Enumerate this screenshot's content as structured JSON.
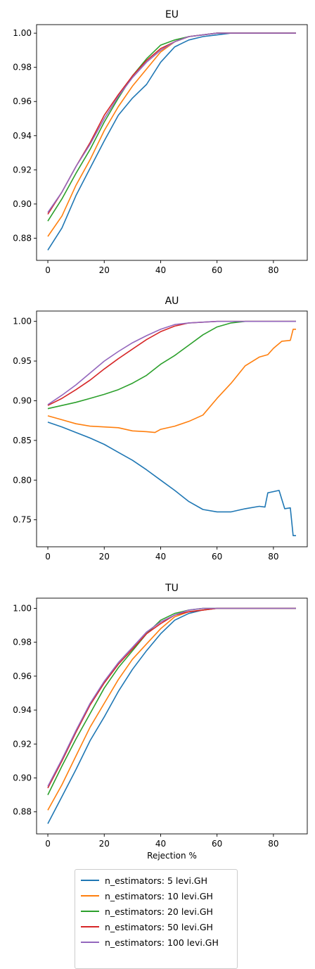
{
  "chart_data": [
    {
      "type": "line",
      "title": "EU",
      "xlabel": "",
      "ylabel": "",
      "xlim": [
        -4,
        92
      ],
      "ylim": [
        0.867,
        1.005
      ],
      "xticks": [
        0,
        20,
        40,
        60,
        80
      ],
      "yticks": [
        0.88,
        0.9,
        0.92,
        0.94,
        0.96,
        0.98,
        1.0
      ],
      "ytick_labels": [
        "0.88",
        "0.90",
        "0.92",
        "0.94",
        "0.96",
        "0.98",
        "1.00"
      ],
      "grid": false,
      "series": [
        {
          "name": "n_estimators: 5 levi.GH",
          "color": "#1f77b4",
          "x": [
            0,
            5,
            10,
            15,
            20,
            25,
            30,
            35,
            40,
            45,
            50,
            55,
            60,
            65,
            70,
            80,
            88
          ],
          "y": [
            0.873,
            0.886,
            0.905,
            0.921,
            0.937,
            0.952,
            0.962,
            0.97,
            0.983,
            0.992,
            0.996,
            0.998,
            0.999,
            1.0,
            1.0,
            1.0,
            1.0
          ]
        },
        {
          "name": "n_estimators: 10 levi.GH",
          "color": "#ff7f0e",
          "x": [
            0,
            5,
            10,
            15,
            20,
            25,
            30,
            35,
            40,
            45,
            50,
            55,
            60,
            65,
            70,
            80,
            88
          ],
          "y": [
            0.881,
            0.893,
            0.911,
            0.926,
            0.943,
            0.957,
            0.969,
            0.979,
            0.989,
            0.995,
            0.998,
            0.999,
            1.0,
            1.0,
            1.0,
            1.0,
            1.0
          ]
        },
        {
          "name": "n_estimators: 20 levi.GH",
          "color": "#2ca02c",
          "x": [
            0,
            5,
            10,
            15,
            20,
            25,
            30,
            35,
            40,
            45,
            50,
            55,
            60,
            65,
            70,
            80,
            88
          ],
          "y": [
            0.89,
            0.903,
            0.918,
            0.932,
            0.948,
            0.962,
            0.975,
            0.985,
            0.993,
            0.996,
            0.998,
            0.999,
            1.0,
            1.0,
            1.0,
            1.0,
            1.0
          ]
        },
        {
          "name": "n_estimators: 50 levi.GH",
          "color": "#d62728",
          "x": [
            0,
            5,
            10,
            15,
            20,
            25,
            30,
            35,
            40,
            45,
            50,
            55,
            60,
            65,
            70,
            80,
            88
          ],
          "y": [
            0.894,
            0.907,
            0.922,
            0.936,
            0.952,
            0.964,
            0.975,
            0.984,
            0.991,
            0.995,
            0.998,
            0.999,
            1.0,
            1.0,
            1.0,
            1.0,
            1.0
          ]
        },
        {
          "name": "n_estimators: 100 levi.GH",
          "color": "#9467bd",
          "x": [
            0,
            5,
            10,
            15,
            20,
            25,
            30,
            35,
            40,
            45,
            50,
            55,
            60,
            65,
            70,
            80,
            88
          ],
          "y": [
            0.895,
            0.907,
            0.922,
            0.935,
            0.95,
            0.963,
            0.974,
            0.983,
            0.99,
            0.995,
            0.998,
            0.999,
            1.0,
            1.0,
            1.0,
            1.0,
            1.0
          ]
        }
      ]
    },
    {
      "type": "line",
      "title": "AU",
      "xlabel": "",
      "ylabel": "",
      "xlim": [
        -4,
        92
      ],
      "ylim": [
        0.716,
        1.013
      ],
      "xticks": [
        0,
        20,
        40,
        60,
        80
      ],
      "yticks": [
        0.75,
        0.8,
        0.85,
        0.9,
        0.95,
        1.0
      ],
      "ytick_labels": [
        "0.75",
        "0.80",
        "0.85",
        "0.90",
        "0.95",
        "1.00"
      ],
      "grid": false,
      "series": [
        {
          "name": "n_estimators: 5 levi.GH",
          "color": "#1f77b4",
          "x": [
            0,
            5,
            10,
            15,
            20,
            25,
            30,
            35,
            40,
            45,
            50,
            55,
            60,
            65,
            70,
            75,
            77,
            78,
            82,
            84,
            86,
            87,
            88
          ],
          "y": [
            0.873,
            0.867,
            0.86,
            0.853,
            0.845,
            0.835,
            0.825,
            0.813,
            0.8,
            0.787,
            0.773,
            0.763,
            0.76,
            0.76,
            0.764,
            0.767,
            0.766,
            0.784,
            0.787,
            0.764,
            0.765,
            0.73,
            0.73
          ]
        },
        {
          "name": "n_estimators: 10 levi.GH",
          "color": "#ff7f0e",
          "x": [
            0,
            5,
            10,
            15,
            20,
            25,
            30,
            35,
            38,
            40,
            45,
            50,
            55,
            60,
            65,
            70,
            75,
            78,
            80,
            83,
            86,
            87,
            88
          ],
          "y": [
            0.881,
            0.876,
            0.871,
            0.868,
            0.867,
            0.866,
            0.862,
            0.861,
            0.86,
            0.864,
            0.868,
            0.874,
            0.882,
            0.903,
            0.922,
            0.944,
            0.955,
            0.958,
            0.966,
            0.975,
            0.976,
            0.99,
            0.99
          ]
        },
        {
          "name": "n_estimators: 20 levi.GH",
          "color": "#2ca02c",
          "x": [
            0,
            5,
            10,
            15,
            20,
            25,
            30,
            35,
            40,
            45,
            50,
            55,
            60,
            65,
            70,
            75,
            80,
            88
          ],
          "y": [
            0.89,
            0.894,
            0.898,
            0.903,
            0.908,
            0.914,
            0.922,
            0.932,
            0.946,
            0.957,
            0.97,
            0.983,
            0.993,
            0.998,
            1.0,
            1.0,
            1.0,
            1.0
          ]
        },
        {
          "name": "n_estimators: 50 levi.GH",
          "color": "#d62728",
          "x": [
            0,
            5,
            10,
            15,
            20,
            25,
            30,
            35,
            40,
            45,
            50,
            55,
            60,
            65,
            70,
            80,
            88
          ],
          "y": [
            0.894,
            0.903,
            0.914,
            0.926,
            0.94,
            0.953,
            0.965,
            0.977,
            0.987,
            0.994,
            0.998,
            0.999,
            1.0,
            1.0,
            1.0,
            1.0,
            1.0
          ]
        },
        {
          "name": "n_estimators: 100 levi.GH",
          "color": "#9467bd",
          "x": [
            0,
            5,
            10,
            15,
            20,
            25,
            30,
            35,
            40,
            45,
            50,
            55,
            60,
            65,
            70,
            80,
            88
          ],
          "y": [
            0.895,
            0.907,
            0.92,
            0.935,
            0.95,
            0.962,
            0.973,
            0.982,
            0.99,
            0.996,
            0.998,
            0.999,
            1.0,
            1.0,
            1.0,
            1.0,
            1.0
          ]
        }
      ]
    },
    {
      "type": "line",
      "title": "TU",
      "xlabel": "Rejection %",
      "ylabel": "",
      "xlim": [
        -4,
        92
      ],
      "ylim": [
        0.867,
        1.006
      ],
      "xticks": [
        0,
        20,
        40,
        60,
        80
      ],
      "yticks": [
        0.88,
        0.9,
        0.92,
        0.94,
        0.96,
        0.98,
        1.0
      ],
      "ytick_labels": [
        "0.88",
        "0.90",
        "0.92",
        "0.94",
        "0.96",
        "0.98",
        "1.00"
      ],
      "grid": false,
      "series": [
        {
          "name": "n_estimators: 5 levi.GH",
          "color": "#1f77b4",
          "x": [
            0,
            5,
            10,
            15,
            20,
            25,
            30,
            35,
            40,
            45,
            50,
            55,
            60,
            65,
            70,
            80,
            88
          ],
          "y": [
            0.873,
            0.889,
            0.905,
            0.922,
            0.936,
            0.951,
            0.964,
            0.975,
            0.985,
            0.993,
            0.997,
            0.999,
            1.0,
            1.0,
            1.0,
            1.0,
            1.0
          ]
        },
        {
          "name": "n_estimators: 10 levi.GH",
          "color": "#ff7f0e",
          "x": [
            0,
            5,
            10,
            15,
            20,
            25,
            30,
            35,
            40,
            45,
            50,
            55,
            60,
            65,
            70,
            80,
            88
          ],
          "y": [
            0.881,
            0.896,
            0.913,
            0.93,
            0.944,
            0.958,
            0.97,
            0.979,
            0.988,
            0.995,
            0.998,
            0.999,
            1.0,
            1.0,
            1.0,
            1.0,
            1.0
          ]
        },
        {
          "name": "n_estimators: 20 levi.GH",
          "color": "#2ca02c",
          "x": [
            0,
            5,
            10,
            15,
            20,
            25,
            30,
            35,
            40,
            45,
            50,
            55,
            60,
            65,
            70,
            80,
            88
          ],
          "y": [
            0.89,
            0.907,
            0.923,
            0.938,
            0.953,
            0.965,
            0.975,
            0.985,
            0.993,
            0.997,
            0.999,
            1.0,
            1.0,
            1.0,
            1.0,
            1.0,
            1.0
          ]
        },
        {
          "name": "n_estimators: 50 levi.GH",
          "color": "#d62728",
          "x": [
            0,
            5,
            10,
            15,
            20,
            25,
            30,
            35,
            40,
            45,
            50,
            55,
            60,
            65,
            70,
            80,
            88
          ],
          "y": [
            0.894,
            0.91,
            0.927,
            0.943,
            0.956,
            0.967,
            0.976,
            0.985,
            0.991,
            0.996,
            0.998,
            0.999,
            1.0,
            1.0,
            1.0,
            1.0,
            1.0
          ]
        },
        {
          "name": "n_estimators: 100 levi.GH",
          "color": "#9467bd",
          "x": [
            0,
            5,
            10,
            15,
            20,
            25,
            30,
            35,
            40,
            45,
            50,
            55,
            60,
            65,
            70,
            80,
            88
          ],
          "y": [
            0.895,
            0.911,
            0.928,
            0.944,
            0.957,
            0.968,
            0.977,
            0.986,
            0.992,
            0.996,
            0.999,
            1.0,
            1.0,
            1.0,
            1.0,
            1.0,
            1.0
          ]
        }
      ]
    }
  ],
  "legend": {
    "location": "below",
    "entries": [
      {
        "label": "n_estimators: 5 levi.GH",
        "color": "#1f77b4"
      },
      {
        "label": "n_estimators: 10 levi.GH",
        "color": "#ff7f0e"
      },
      {
        "label": "n_estimators: 20 levi.GH",
        "color": "#2ca02c"
      },
      {
        "label": "n_estimators: 50 levi.GH",
        "color": "#d62728"
      },
      {
        "label": "n_estimators: 100 levi.GH",
        "color": "#9467bd"
      }
    ]
  }
}
